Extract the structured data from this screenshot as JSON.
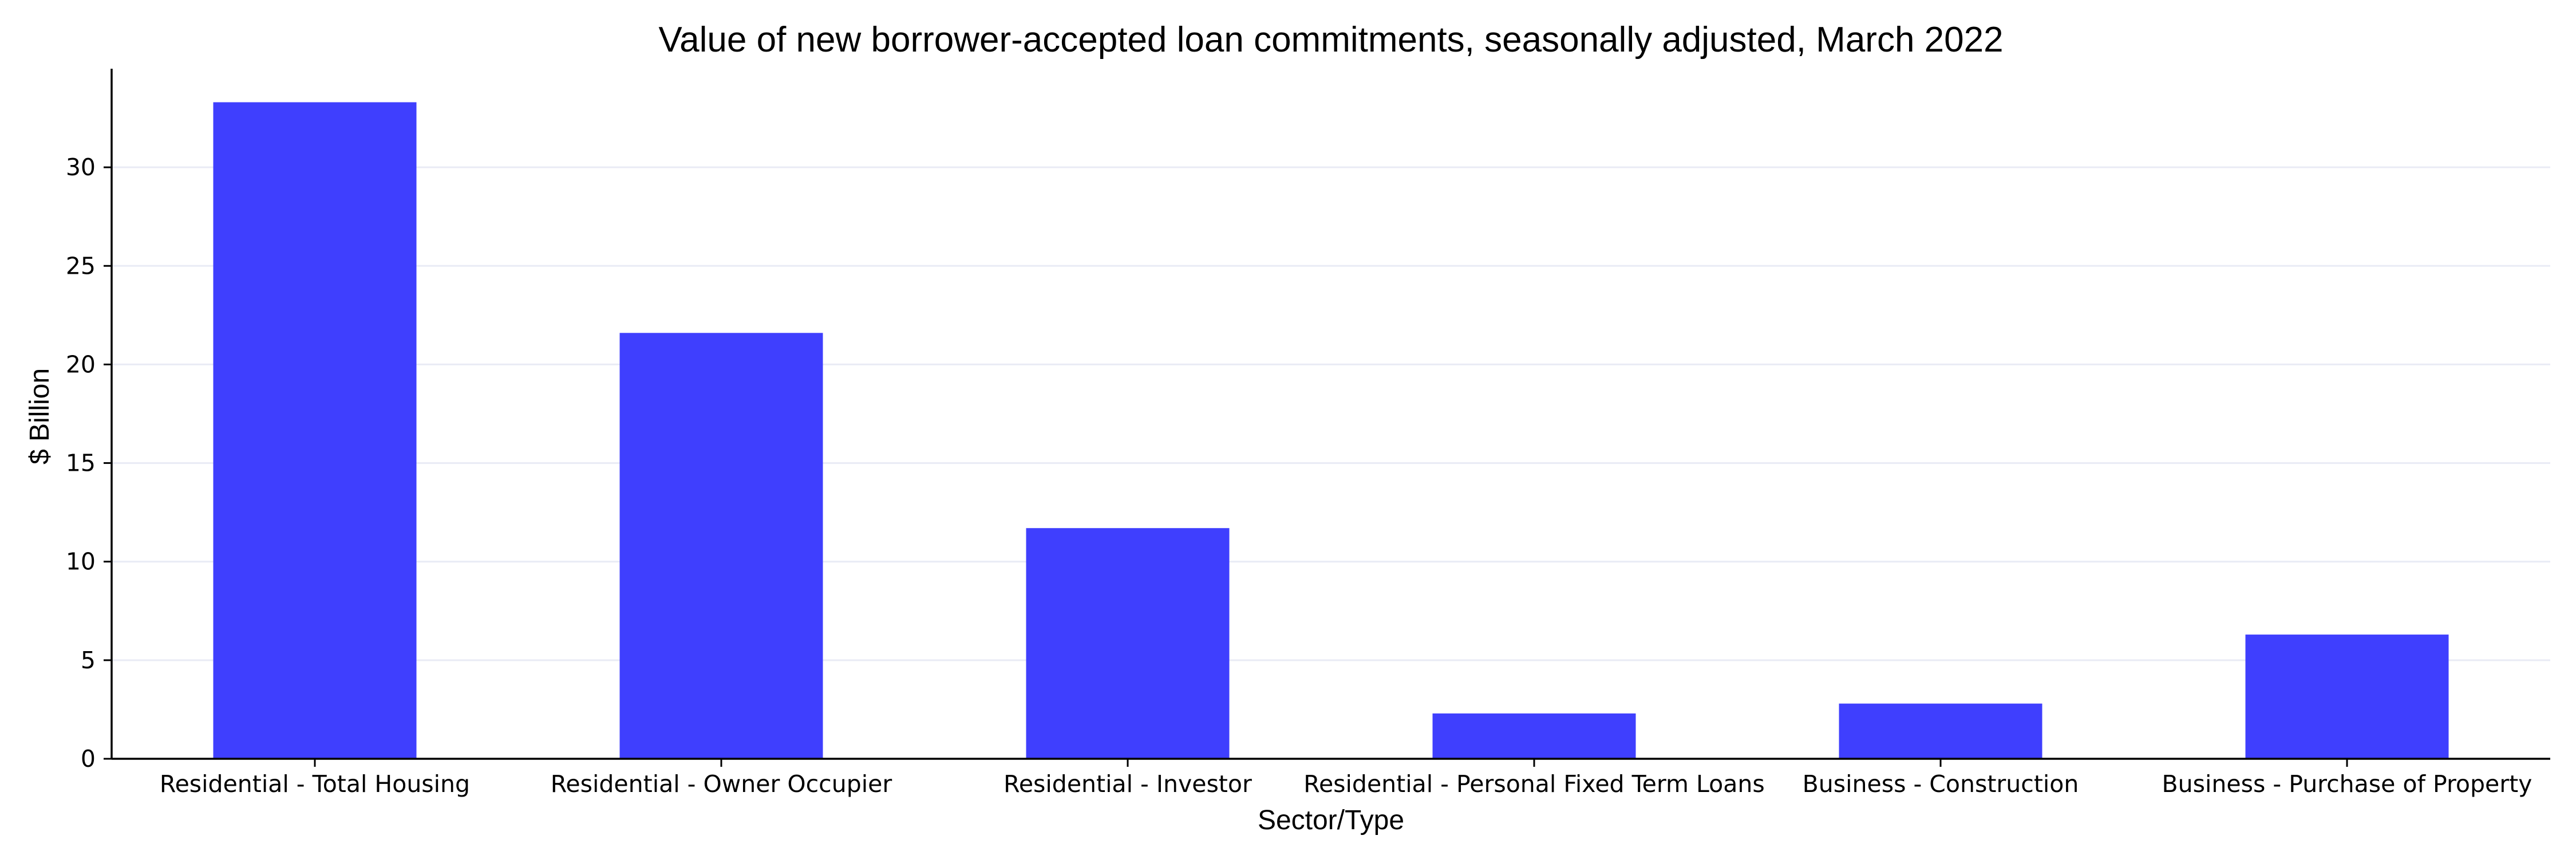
{
  "chart_data": {
    "type": "bar",
    "title": "Value of new borrower-accepted loan commitments, seasonally adjusted, March 2022",
    "xlabel": "Sector/Type",
    "ylabel": "$ Billion",
    "categories": [
      "Residential - Total Housing",
      "Residential - Owner Occupier",
      "Residential - Investor",
      "Residential - Personal Fixed Term Loans",
      "Business - Construction",
      "Business - Purchase of Property"
    ],
    "values": [
      33.3,
      21.6,
      11.7,
      2.3,
      2.8,
      6.3
    ],
    "yticks": [
      0,
      5,
      10,
      15,
      20,
      25,
      30
    ],
    "ylim": [
      0,
      35
    ],
    "grid": "horizontal",
    "legend": "none",
    "bar_color": "#3f3ffe",
    "grid_color": "#e9ebf5"
  }
}
